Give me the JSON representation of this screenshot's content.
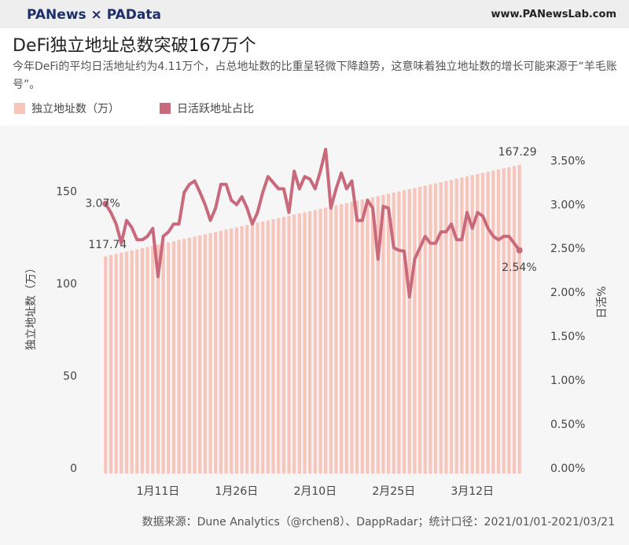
{
  "header": {
    "brand": "PANews × PAData",
    "url": "www.PANewsLab.com"
  },
  "chart_data": {
    "type": "bar-line",
    "title": "DeFi独立地址总数突破167万个",
    "subtitle": "今年DeFi的平均日活地址约为4.11万个，占总地址数的比重呈轻微下降趋势，这意味着独立地址数的增长可能来源于“羊毛账号”。",
    "ylabel": "独立地址数（万）",
    "y2label": "日活%",
    "source": "数据来源：Dune Analytics（@rchen8）、DappRadar；统计口径：2021/01/01-2021/03/21",
    "categories": [
      null,
      null,
      null,
      null,
      null,
      null,
      null,
      null,
      null,
      null,
      "1月11日",
      null,
      null,
      null,
      null,
      null,
      null,
      null,
      null,
      null,
      null,
      null,
      null,
      null,
      null,
      "1月26日",
      null,
      null,
      null,
      null,
      null,
      null,
      null,
      null,
      null,
      null,
      null,
      null,
      null,
      null,
      "2月10日",
      null,
      null,
      null,
      null,
      null,
      null,
      null,
      null,
      null,
      null,
      null,
      null,
      null,
      null,
      "2月25日",
      null,
      null,
      null,
      null,
      null,
      null,
      null,
      null,
      null,
      null,
      null,
      null,
      null,
      null,
      "3月12日",
      null,
      null,
      null,
      null,
      null,
      null,
      null,
      null,
      null
    ],
    "ylim": [
      0,
      180
    ],
    "yticks": [
      0,
      50,
      100,
      150
    ],
    "y2lim": [
      0,
      3.78
    ],
    "y2ticks": [
      {
        "value": 0,
        "label": "0.00%"
      },
      {
        "value": 0.5,
        "label": "0.50%"
      },
      {
        "value": 1,
        "label": "1.00%"
      },
      {
        "value": 1.5,
        "label": "1.50%"
      },
      {
        "value": 2,
        "label": "2.00%"
      },
      {
        "value": 2.5,
        "label": "2.50%"
      },
      {
        "value": 3,
        "label": "3.00%"
      },
      {
        "value": 3.5,
        "label": "3.50%"
      }
    ],
    "legend": "top-left",
    "series": [
      {
        "name": "独立地址数（万）",
        "color": "#f6c6bd",
        "kind": "bar",
        "values": [
          117.74,
          118.37,
          118.99,
          119.62,
          120.25,
          120.88,
          121.5,
          122.13,
          122.76,
          123.39,
          124.01,
          124.64,
          125.27,
          125.89,
          126.52,
          127.15,
          127.78,
          128.4,
          129.03,
          129.66,
          130.28,
          130.91,
          131.54,
          132.17,
          132.79,
          133.42,
          134.05,
          134.67,
          135.3,
          135.93,
          136.56,
          137.18,
          137.81,
          138.44,
          139.06,
          139.69,
          140.32,
          140.95,
          141.57,
          142.2,
          142.83,
          143.45,
          144.08,
          144.71,
          145.34,
          145.96,
          146.59,
          147.22,
          147.84,
          148.47,
          149.1,
          149.73,
          150.35,
          150.98,
          151.61,
          152.23,
          152.86,
          153.49,
          154.12,
          154.74,
          155.37,
          156.0,
          156.62,
          157.25,
          157.88,
          158.51,
          159.13,
          159.76,
          160.39,
          161.01,
          161.64,
          162.27,
          162.9,
          163.52,
          164.15,
          164.78,
          165.4,
          166.03,
          166.66,
          167.29
        ]
      },
      {
        "name": "日活跃地址占比",
        "color": "#c96a7c",
        "kind": "line",
        "axis": "y2",
        "values": [
          3.07,
          2.97,
          2.84,
          2.62,
          2.88,
          2.8,
          2.66,
          2.66,
          2.7,
          2.79,
          2.24,
          2.7,
          2.75,
          2.84,
          2.84,
          3.2,
          3.29,
          3.33,
          3.2,
          3.06,
          2.88,
          3.02,
          3.29,
          3.29,
          3.11,
          3.06,
          3.15,
          3.02,
          2.84,
          2.97,
          3.2,
          3.38,
          3.31,
          3.24,
          3.24,
          2.97,
          3.44,
          3.24,
          3.38,
          3.35,
          3.24,
          3.44,
          3.69,
          3.02,
          3.24,
          3.42,
          3.24,
          3.33,
          2.88,
          2.88,
          3.11,
          3.02,
          2.44,
          3.04,
          3.02,
          2.57,
          2.54,
          2.53,
          2.01,
          2.44,
          2.57,
          2.7,
          2.62,
          2.62,
          2.75,
          2.75,
          2.84,
          2.66,
          2.66,
          2.97,
          2.79,
          2.97,
          2.93,
          2.79,
          2.7,
          2.66,
          2.7,
          2.7,
          2.62,
          2.54
        ],
        "value_labels": [
          "3.07%",
          null,
          null,
          null,
          null,
          null,
          null,
          null,
          null,
          null,
          null,
          null,
          null,
          null,
          null,
          null,
          null,
          null,
          null,
          null,
          null,
          null,
          null,
          null,
          null,
          null,
          null,
          null,
          null,
          null,
          null,
          null,
          null,
          null,
          null,
          null,
          null,
          null,
          null,
          null,
          null,
          null,
          null,
          null,
          null,
          null,
          null,
          null,
          null,
          null,
          null,
          null,
          null,
          null,
          null,
          null,
          null,
          null,
          null,
          null,
          null,
          null,
          null,
          null,
          null,
          null,
          null,
          null,
          null,
          null,
          null,
          null,
          null,
          null,
          null,
          null,
          null,
          null,
          null,
          "2.54%"
        ]
      }
    ]
  }
}
